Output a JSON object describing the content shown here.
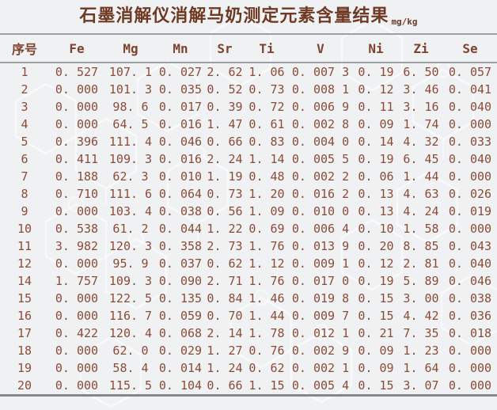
{
  "title": {
    "text": "石墨消解仪消解马奶测定元素含量结果",
    "unit": "mg/kg"
  },
  "table": {
    "headers": [
      "序号",
      "Fe",
      "Mg",
      "Mn",
      "Sr",
      "Ti",
      "V",
      "Ni",
      "Zi",
      "Se"
    ],
    "rows": [
      [
        "1",
        "0. 527",
        "107. 1",
        "0. 027",
        "2. 62",
        "1. 06",
        "0. 007 3",
        "0. 19",
        "6. 50",
        "0. 057"
      ],
      [
        "2",
        "0. 000",
        "101. 3",
        "0. 035",
        "0. 52",
        "0. 73",
        "0. 008 1",
        "0. 12",
        "3. 46",
        "0. 041"
      ],
      [
        "3",
        "0. 000",
        "98. 6",
        "0. 017",
        "0. 39",
        "0. 72",
        "0. 006 9",
        "0. 11",
        "3. 16",
        "0. 040"
      ],
      [
        "4",
        "0. 000",
        "64. 5",
        "0. 016",
        "1. 47",
        "0. 61",
        "0. 002 8",
        "0. 09",
        "1. 74",
        "0. 000"
      ],
      [
        "5",
        "0. 396",
        "111. 4",
        "0. 046",
        "0. 66",
        "0. 83",
        "0. 004 0",
        "0. 14",
        "4. 32",
        "0. 033"
      ],
      [
        "6",
        "0. 411",
        "109. 3",
        "0. 016",
        "2. 24",
        "1. 14",
        "0. 005 5",
        "0. 19",
        "6. 45",
        "0. 040"
      ],
      [
        "7",
        "0. 188",
        "62. 3",
        "0. 010",
        "1. 19",
        "0. 48",
        "0. 002 2",
        "0. 06",
        "1. 44",
        "0. 000"
      ],
      [
        "8",
        "0. 710",
        "111. 6",
        "0. 064",
        "0. 73",
        "1. 20",
        "0. 016 2",
        "0. 13",
        "4. 63",
        "0. 026"
      ],
      [
        "9",
        "0. 000",
        "103. 4",
        "0. 038",
        "0. 56",
        "1. 09",
        "0. 010 0",
        "0. 13",
        "4. 24",
        "0. 019"
      ],
      [
        "10",
        "0. 538",
        "61. 2",
        "0. 044",
        "1. 22",
        "0. 69",
        "0. 006 4",
        "0. 10",
        "1. 58",
        "0. 000"
      ],
      [
        "11",
        "3. 982",
        "120. 3",
        "0. 358",
        "2. 73",
        "1. 76",
        "0. 013 9",
        "0. 20",
        "8. 85",
        "0. 043"
      ],
      [
        "12",
        "0. 000",
        "95. 9",
        "0. 037",
        "0. 62",
        "1. 12",
        "0. 009 1",
        "0. 12",
        "2. 81",
        "0. 040"
      ],
      [
        "14",
        "1. 757",
        "109. 3",
        "0. 090",
        "2. 71",
        "1. 76",
        "0. 017 0",
        "0. 19",
        "5. 89",
        "0. 046"
      ],
      [
        "15",
        "0. 000",
        "122. 5",
        "0. 135",
        "0. 84",
        "1. 46",
        "0. 019 8",
        "0. 15",
        "3. 00",
        "0. 038"
      ],
      [
        "16",
        "0. 000",
        "116. 7",
        "0. 059",
        "0. 70",
        "1. 44",
        "0. 009 7",
        "0. 15",
        "4. 42",
        "0. 036"
      ],
      [
        "17",
        "0. 422",
        "120. 4",
        "0. 068",
        "2. 14",
        "1. 78",
        "0. 012 1",
        "0. 21",
        "7. 35",
        "0. 018"
      ],
      [
        "18",
        "0. 000",
        "62. 0",
        "0. 029",
        "1. 27",
        "0. 76",
        "0. 002 9",
        "0. 09",
        "1. 23",
        "0. 000"
      ],
      [
        "19",
        "0. 000",
        "58. 4",
        "0. 014",
        "1. 24",
        "0. 62",
        "0. 002 1",
        "0. 09",
        "1. 64",
        "0. 000"
      ],
      [
        "20",
        "0. 000",
        "115. 5",
        "0. 104",
        "0. 66",
        "1. 15",
        "0. 005 4",
        "0. 15",
        "3. 07",
        "0. 000"
      ]
    ]
  },
  "chart_data": {
    "type": "table",
    "title": "石墨消解仪消解马奶测定元素含量结果",
    "unit": "mg/kg",
    "columns": [
      "序号",
      "Fe",
      "Mg",
      "Mn",
      "Sr",
      "Ti",
      "V",
      "Ni",
      "Zi",
      "Se"
    ],
    "rows": [
      [
        1,
        0.527,
        107.1,
        0.027,
        2.62,
        1.06,
        0.0073,
        0.19,
        6.5,
        0.057
      ],
      [
        2,
        0.0,
        101.3,
        0.035,
        0.52,
        0.73,
        0.0081,
        0.12,
        3.46,
        0.041
      ],
      [
        3,
        0.0,
        98.6,
        0.017,
        0.39,
        0.72,
        0.0069,
        0.11,
        3.16,
        0.04
      ],
      [
        4,
        0.0,
        64.5,
        0.016,
        1.47,
        0.61,
        0.0028,
        0.09,
        1.74,
        0.0
      ],
      [
        5,
        0.396,
        111.4,
        0.046,
        0.66,
        0.83,
        0.004,
        0.14,
        4.32,
        0.033
      ],
      [
        6,
        0.411,
        109.3,
        0.016,
        2.24,
        1.14,
        0.0055,
        0.19,
        6.45,
        0.04
      ],
      [
        7,
        0.188,
        62.3,
        0.01,
        1.19,
        0.48,
        0.0022,
        0.06,
        1.44,
        0.0
      ],
      [
        8,
        0.71,
        111.6,
        0.064,
        0.73,
        1.2,
        0.0162,
        0.13,
        4.63,
        0.026
      ],
      [
        9,
        0.0,
        103.4,
        0.038,
        0.56,
        1.09,
        0.01,
        0.13,
        4.24,
        0.019
      ],
      [
        10,
        0.538,
        61.2,
        0.044,
        1.22,
        0.69,
        0.0064,
        0.1,
        1.58,
        0.0
      ],
      [
        11,
        3.982,
        120.3,
        0.358,
        2.73,
        1.76,
        0.0139,
        0.2,
        8.85,
        0.043
      ],
      [
        12,
        0.0,
        95.9,
        0.037,
        0.62,
        1.12,
        0.0091,
        0.12,
        2.81,
        0.04
      ],
      [
        14,
        1.757,
        109.3,
        0.09,
        2.71,
        1.76,
        0.017,
        0.19,
        5.89,
        0.046
      ],
      [
        15,
        0.0,
        122.5,
        0.135,
        0.84,
        1.46,
        0.0198,
        0.15,
        3.0,
        0.038
      ],
      [
        16,
        0.0,
        116.7,
        0.059,
        0.7,
        1.44,
        0.0097,
        0.15,
        4.42,
        0.036
      ],
      [
        17,
        0.422,
        120.4,
        0.068,
        2.14,
        1.78,
        0.0121,
        0.21,
        7.35,
        0.018
      ],
      [
        18,
        0.0,
        62.0,
        0.029,
        1.27,
        0.76,
        0.0029,
        0.09,
        1.23,
        0.0
      ],
      [
        19,
        0.0,
        58.4,
        0.014,
        1.24,
        0.62,
        0.0021,
        0.09,
        1.64,
        0.0
      ],
      [
        20,
        0.0,
        115.5,
        0.104,
        0.66,
        1.15,
        0.0054,
        0.15,
        3.07,
        0.0
      ]
    ],
    "note": "three-line table; sample 13 absent"
  },
  "colors": {
    "background": "#eff1f3",
    "title_text": "#6e3a24",
    "header_text": "#7e432e",
    "data_text": "#8b4c37",
    "rule_gray": "#9aa0a4",
    "bottom_rule_gray": "#84888c",
    "pattern_white": "#ffffff"
  }
}
